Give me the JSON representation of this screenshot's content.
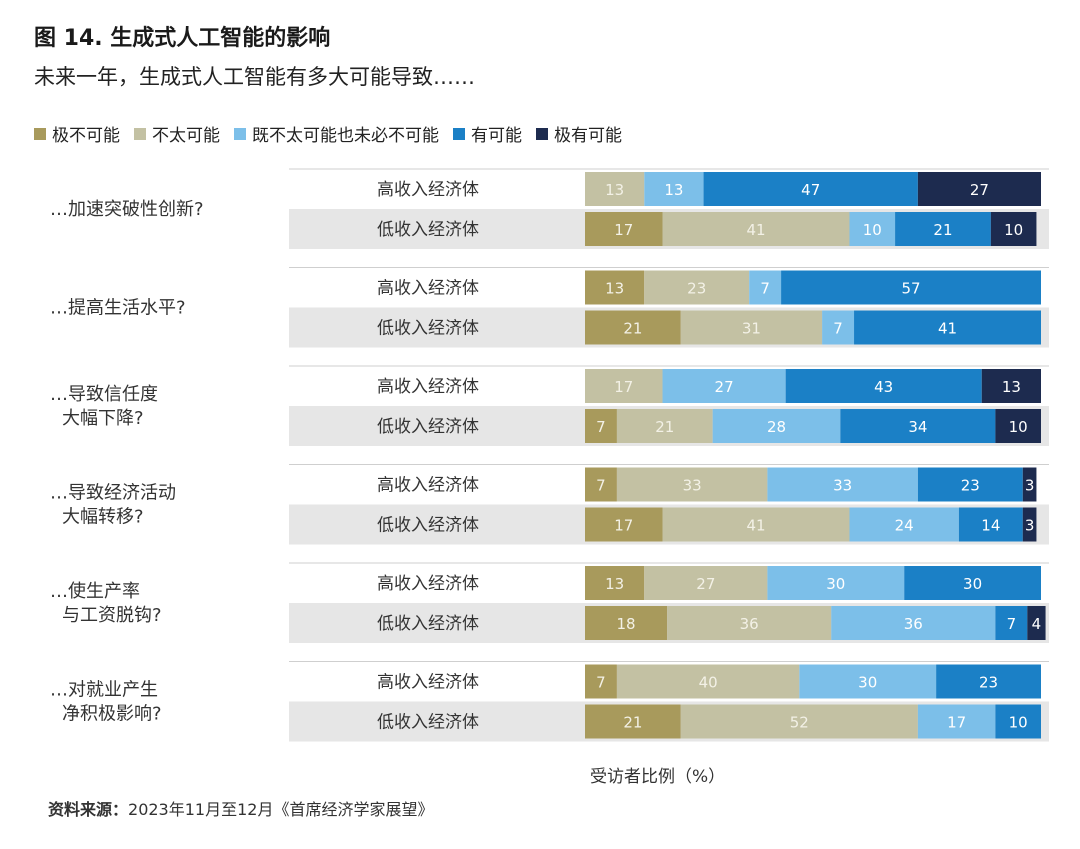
{
  "header": {
    "title": "图 14. 生成式人工智能的影响",
    "subtitle": "未来一年，生成式人工智能有多大可能导致……"
  },
  "footer": {
    "xlabel": "受访者比例（%）",
    "source_label": "资料来源：",
    "source_text": "2023年11月至12月《首席经济学家展望》"
  },
  "colors": {
    "极不可能": "#a89a5c",
    "不太可能": "#c3c1a3",
    "既不太可能也未必不可能": "#7cbfe9",
    "有可能": "#1b80c6",
    "极有可能": "#1d2b4f",
    "row_band": "#e6e6e6"
  },
  "chart_data": {
    "type": "bar",
    "orientation": "horizontal",
    "stacked": true,
    "title": "图 14. 生成式人工智能的影响",
    "subtitle": "未来一年，生成式人工智能有多大可能导致……",
    "xlabel": "受访者比例（%）",
    "xlim": [
      0,
      100
    ],
    "legend": [
      "极不可能",
      "不太可能",
      "既不太可能也未必不可能",
      "有可能",
      "极有可能"
    ],
    "legend_position": "top-left",
    "groups": [
      {
        "label": "…加速突破性创新?",
        "rows": [
          {
            "label": "高收入经济体",
            "values": [
              0,
              13,
              13,
              47,
              27
            ]
          },
          {
            "label": "低收入经济体",
            "values": [
              17,
              41,
              10,
              21,
              10
            ]
          }
        ]
      },
      {
        "label": "…提高生活水平?",
        "rows": [
          {
            "label": "高收入经济体",
            "values": [
              13,
              23,
              7,
              57,
              0
            ]
          },
          {
            "label": "低收入经济体",
            "values": [
              21,
              31,
              7,
              41,
              0
            ]
          }
        ]
      },
      {
        "label": "…导致信任度\n大幅下降?",
        "rows": [
          {
            "label": "高收入经济体",
            "values": [
              0,
              17,
              27,
              43,
              13
            ]
          },
          {
            "label": "低收入经济体",
            "values": [
              7,
              21,
              28,
              34,
              10
            ]
          }
        ]
      },
      {
        "label": "…导致经济活动\n大幅转移?",
        "rows": [
          {
            "label": "高收入经济体",
            "values": [
              7,
              33,
              33,
              23,
              3
            ]
          },
          {
            "label": "低收入经济体",
            "values": [
              17,
              41,
              24,
              14,
              3
            ]
          }
        ]
      },
      {
        "label": "…使生产率\n与工资脱钩?",
        "rows": [
          {
            "label": "高收入经济体",
            "values": [
              13,
              27,
              30,
              30,
              0
            ]
          },
          {
            "label": "低收入经济体",
            "values": [
              18,
              36,
              36,
              7,
              4
            ]
          }
        ]
      },
      {
        "label": "…对就业产生\n净积极影响?",
        "rows": [
          {
            "label": "高收入经济体",
            "values": [
              7,
              40,
              30,
              23,
              0
            ]
          },
          {
            "label": "低收入经济体",
            "values": [
              21,
              52,
              17,
              10,
              0
            ]
          }
        ]
      }
    ]
  }
}
